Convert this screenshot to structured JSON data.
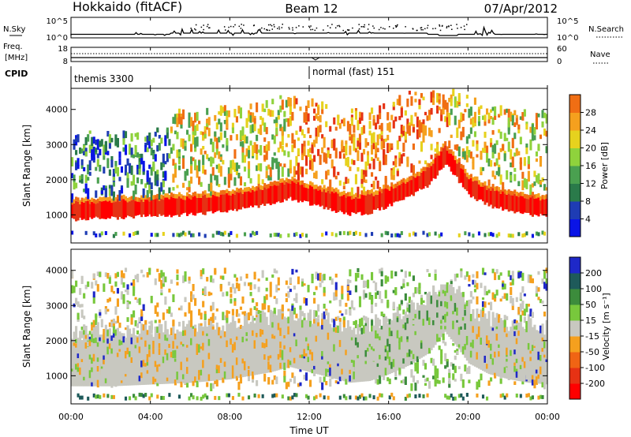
{
  "header": {
    "station": "Hokkaido (fitACF)",
    "beam": "Beam 12",
    "date": "07/Apr/2012"
  },
  "top_panels": {
    "nsky": {
      "label": "N.Sky",
      "y_top": "10^5",
      "y_bottom": "10^0"
    },
    "nsearch": {
      "label": "N.Search",
      "y_top": "10^5",
      "y_bottom": "10^0"
    },
    "freq": {
      "label_line1": "Freq.",
      "label_line2": "[MHz]",
      "y_top": "18",
      "y_bottom": "8"
    },
    "nave": {
      "label": "Nave",
      "y_top": "60",
      "y_bottom": "0"
    },
    "cpid": {
      "label": "CPID",
      "modes": [
        {
          "name": "themis 3300",
          "start_hour": 0
        },
        {
          "name": "normal (fast) 151",
          "start_hour": 12
        }
      ]
    }
  },
  "chart_data": [
    {
      "type": "heatmap",
      "name": "power",
      "ylabel": "Slant Range [km]",
      "yticks": [
        1000,
        2000,
        3000,
        4000
      ],
      "ylim": [
        200,
        4600
      ],
      "xlim": [
        0,
        24
      ],
      "colorbar": {
        "label": "Power [dB]",
        "ticks": [
          4,
          8,
          12,
          16,
          20,
          24,
          28
        ],
        "range": [
          0,
          32
        ],
        "colors": [
          "#0a14e6",
          "#1e3cb4",
          "#2a7a4a",
          "#4aa050",
          "#8fd23c",
          "#e6d21e",
          "#f5a01e",
          "#f06e14",
          "#e63214",
          "#ff0000"
        ]
      },
      "echo_bands": [
        {
          "description": "main band",
          "points_hour": [
            0,
            2,
            4,
            6,
            8,
            10,
            11,
            12,
            13,
            14,
            15,
            16,
            17,
            18,
            18.8,
            19.5,
            20,
            21,
            22,
            23,
            24
          ],
          "range_km": [
            1100,
            1150,
            1200,
            1250,
            1350,
            1550,
            1700,
            1550,
            1400,
            1250,
            1300,
            1500,
            1750,
            2100,
            2700,
            2200,
            1800,
            1500,
            1350,
            1250,
            1200
          ]
        }
      ]
    },
    {
      "type": "heatmap",
      "name": "velocity",
      "ylabel": "Slant Range [km]",
      "yticks": [
        1000,
        2000,
        3000,
        4000
      ],
      "ylim": [
        200,
        4600
      ],
      "xlim": [
        0,
        24
      ],
      "xticks": [
        "00:00",
        "04:00",
        "08:00",
        "12:00",
        "16:00",
        "20:00",
        "00:00"
      ],
      "xlabel": "Time UT",
      "colorbar": {
        "label": "Velocity [m s⁻¹]",
        "ticks": [
          200,
          100,
          50,
          15,
          -15,
          -50,
          -100,
          -200
        ],
        "colors": [
          "#1e28c8",
          "#1e5a5a",
          "#3c8c3c",
          "#78c83c",
          "#c8c8c0",
          "#f5a01e",
          "#f06414",
          "#e63214",
          "#ff0000"
        ]
      }
    }
  ],
  "colors": {
    "axis": "#000000",
    "background": "#ffffff",
    "ground_scatter": "#c0c0b8"
  }
}
